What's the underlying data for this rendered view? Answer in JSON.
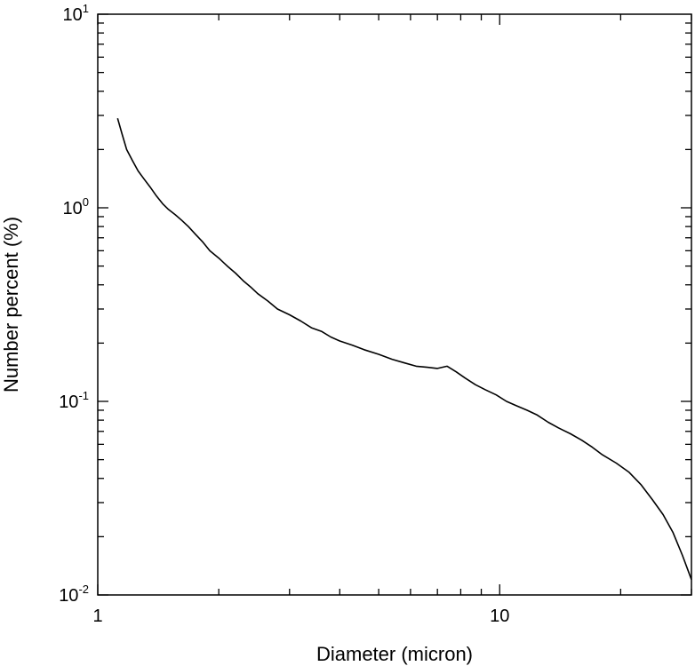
{
  "chart_data": {
    "type": "line",
    "xlabel": "Diameter (micron)",
    "ylabel": "Number percent (%)",
    "x_scale": "log",
    "y_scale": "log",
    "xlim": [
      1,
      30
    ],
    "ylim": [
      0.01,
      10
    ],
    "grid": false,
    "legend": "none",
    "x_ticks": [
      {
        "value": 1,
        "label": "1"
      },
      {
        "value": 10,
        "label": "10"
      }
    ],
    "y_ticks": [
      {
        "value": 0.01,
        "base": "10",
        "exp": "-2"
      },
      {
        "value": 0.1,
        "base": "10",
        "exp": "-1"
      },
      {
        "value": 1,
        "base": "10",
        "exp": "0"
      },
      {
        "value": 10,
        "base": "10",
        "exp": "1"
      }
    ],
    "series": [
      {
        "color": "#000000",
        "points": [
          [
            1.12,
            2.9
          ],
          [
            1.15,
            2.4
          ],
          [
            1.18,
            2.0
          ],
          [
            1.22,
            1.75
          ],
          [
            1.26,
            1.55
          ],
          [
            1.3,
            1.42
          ],
          [
            1.35,
            1.28
          ],
          [
            1.4,
            1.15
          ],
          [
            1.45,
            1.05
          ],
          [
            1.5,
            0.98
          ],
          [
            1.56,
            0.92
          ],
          [
            1.62,
            0.86
          ],
          [
            1.68,
            0.8
          ],
          [
            1.75,
            0.73
          ],
          [
            1.82,
            0.67
          ],
          [
            1.9,
            0.6
          ],
          [
            2.0,
            0.55
          ],
          [
            2.1,
            0.5
          ],
          [
            2.2,
            0.46
          ],
          [
            2.3,
            0.42
          ],
          [
            2.4,
            0.39
          ],
          [
            2.5,
            0.36
          ],
          [
            2.65,
            0.33
          ],
          [
            2.8,
            0.3
          ],
          [
            3.0,
            0.28
          ],
          [
            3.2,
            0.26
          ],
          [
            3.4,
            0.24
          ],
          [
            3.6,
            0.23
          ],
          [
            3.8,
            0.215
          ],
          [
            4.0,
            0.205
          ],
          [
            4.3,
            0.195
          ],
          [
            4.6,
            0.185
          ],
          [
            5.0,
            0.175
          ],
          [
            5.4,
            0.165
          ],
          [
            5.8,
            0.158
          ],
          [
            6.2,
            0.152
          ],
          [
            6.6,
            0.15
          ],
          [
            7.0,
            0.148
          ],
          [
            7.4,
            0.152
          ],
          [
            7.8,
            0.142
          ],
          [
            8.2,
            0.132
          ],
          [
            8.7,
            0.122
          ],
          [
            9.2,
            0.115
          ],
          [
            9.8,
            0.108
          ],
          [
            10.4,
            0.1
          ],
          [
            11.0,
            0.095
          ],
          [
            11.7,
            0.09
          ],
          [
            12.4,
            0.085
          ],
          [
            13.2,
            0.078
          ],
          [
            14.0,
            0.073
          ],
          [
            15.0,
            0.068
          ],
          [
            16.0,
            0.063
          ],
          [
            17.0,
            0.058
          ],
          [
            18.0,
            0.053
          ],
          [
            19.5,
            0.048
          ],
          [
            21.0,
            0.043
          ],
          [
            22.5,
            0.037
          ],
          [
            24.0,
            0.031
          ],
          [
            25.5,
            0.026
          ],
          [
            27.0,
            0.021
          ],
          [
            28.5,
            0.016
          ],
          [
            30.0,
            0.012
          ]
        ]
      }
    ]
  }
}
